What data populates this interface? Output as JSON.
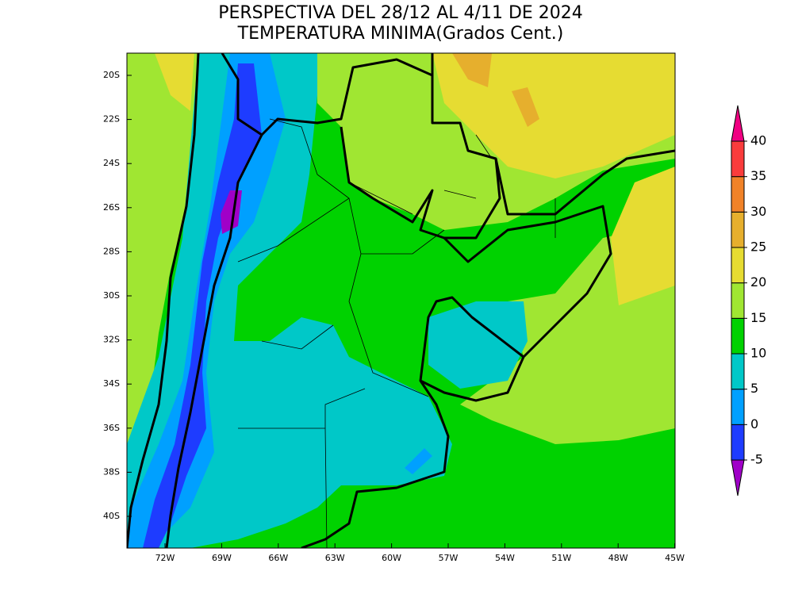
{
  "title": [
    "PERSPECTIVA DEL 28/12 AL 4/11 DE 2024",
    "TEMPERATURA MINIMA(Grados Cent.)"
  ],
  "map": {
    "lat_labels": [
      "20S",
      "22S",
      "24S",
      "26S",
      "28S",
      "30S",
      "32S",
      "34S",
      "36S",
      "38S",
      "40S"
    ],
    "lon_labels": [
      "72W",
      "69W",
      "66W",
      "63W",
      "60W",
      "57W",
      "54W",
      "51W",
      "48W",
      "45W"
    ]
  },
  "colorbar": {
    "ticks": [
      -5,
      0,
      5,
      10,
      15,
      20,
      25,
      30,
      35,
      40
    ],
    "colors": [
      "#a000c8",
      "#1e3cff",
      "#00a0ff",
      "#00c8c8",
      "#00d200",
      "#a0e632",
      "#e6dc32",
      "#e6af2d",
      "#f08228",
      "#fa3c3c",
      "#f00082"
    ]
  }
}
